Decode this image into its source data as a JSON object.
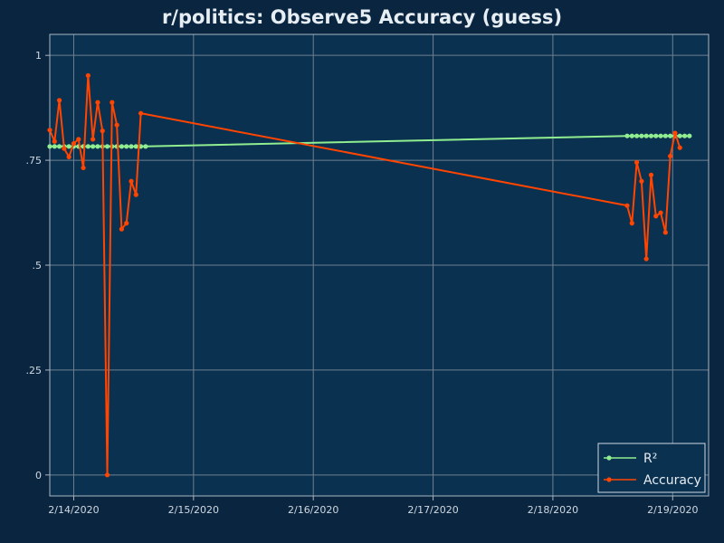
{
  "chart_data": {
    "type": "line",
    "title": "r/politics: Observe5 Accuracy (guess)",
    "xlabel": "",
    "ylabel": "",
    "xlim": [
      -0.2,
      5.3
    ],
    "ylim": [
      -0.05,
      1.05
    ],
    "x_ticks": [
      {
        "value": 0,
        "label": "2/14/2020"
      },
      {
        "value": 1,
        "label": "2/15/2020"
      },
      {
        "value": 2,
        "label": "2/16/2020"
      },
      {
        "value": 3,
        "label": "2/17/2020"
      },
      {
        "value": 4,
        "label": "2/18/2020"
      },
      {
        "value": 5,
        "label": "2/19/2020"
      }
    ],
    "y_ticks": [
      {
        "value": 0,
        "label": "0"
      },
      {
        "value": 0.25,
        "label": ".25"
      },
      {
        "value": 0.5,
        "label": ".5"
      },
      {
        "value": 0.75,
        "label": ".75"
      },
      {
        "value": 1,
        "label": "1"
      }
    ],
    "grid": true,
    "legend_position": "bottom-right",
    "colors": {
      "background": "#0a2540",
      "plot_background": "#0b3150",
      "grid": "#6e7f8f",
      "axis": "#aab6c2"
    },
    "series": [
      {
        "name": "R²",
        "color": "#90ee90",
        "points": [
          [
            -0.2,
            0.783
          ],
          [
            -0.16,
            0.783
          ],
          [
            -0.12,
            0.783
          ],
          [
            -0.08,
            0.783
          ],
          [
            -0.04,
            0.783
          ],
          [
            0.0,
            0.783
          ],
          [
            0.04,
            0.783
          ],
          [
            0.08,
            0.783
          ],
          [
            0.12,
            0.783
          ],
          [
            0.16,
            0.783
          ],
          [
            0.2,
            0.783
          ],
          [
            0.24,
            0.783
          ],
          [
            0.28,
            0.783
          ],
          [
            0.32,
            0.783
          ],
          [
            0.36,
            0.783
          ],
          [
            0.4,
            0.783
          ],
          [
            0.44,
            0.783
          ],
          [
            0.48,
            0.783
          ],
          [
            0.52,
            0.783
          ],
          [
            0.56,
            0.783
          ],
          [
            0.6,
            0.783
          ],
          [
            4.62,
            0.808
          ],
          [
            4.66,
            0.808
          ],
          [
            4.7,
            0.808
          ],
          [
            4.74,
            0.808
          ],
          [
            4.78,
            0.808
          ],
          [
            4.82,
            0.808
          ],
          [
            4.86,
            0.808
          ],
          [
            4.9,
            0.808
          ],
          [
            4.94,
            0.808
          ],
          [
            4.98,
            0.808
          ],
          [
            5.02,
            0.808
          ],
          [
            5.06,
            0.808
          ],
          [
            5.1,
            0.808
          ],
          [
            5.14,
            0.808
          ]
        ]
      },
      {
        "name": "Accuracy",
        "color": "#ff4500",
        "points": [
          [
            -0.2,
            0.822
          ],
          [
            -0.16,
            0.795
          ],
          [
            -0.12,
            0.893
          ],
          [
            -0.08,
            0.778
          ],
          [
            -0.04,
            0.758
          ],
          [
            0.0,
            0.79
          ],
          [
            0.04,
            0.8
          ],
          [
            0.08,
            0.732
          ],
          [
            0.12,
            0.952
          ],
          [
            0.16,
            0.8
          ],
          [
            0.2,
            0.888
          ],
          [
            0.24,
            0.82
          ],
          [
            0.28,
            0.0
          ],
          [
            0.32,
            0.888
          ],
          [
            0.36,
            0.834
          ],
          [
            0.4,
            0.586
          ],
          [
            0.44,
            0.6
          ],
          [
            0.48,
            0.7
          ],
          [
            0.52,
            0.668
          ],
          [
            0.56,
            0.862
          ],
          [
            4.62,
            0.642
          ],
          [
            4.66,
            0.6
          ],
          [
            4.7,
            0.745
          ],
          [
            4.74,
            0.7
          ],
          [
            4.78,
            0.515
          ],
          [
            4.82,
            0.715
          ],
          [
            4.86,
            0.617
          ],
          [
            4.9,
            0.625
          ],
          [
            4.94,
            0.578
          ],
          [
            4.98,
            0.76
          ],
          [
            5.02,
            0.815
          ],
          [
            5.06,
            0.78
          ]
        ]
      }
    ]
  }
}
